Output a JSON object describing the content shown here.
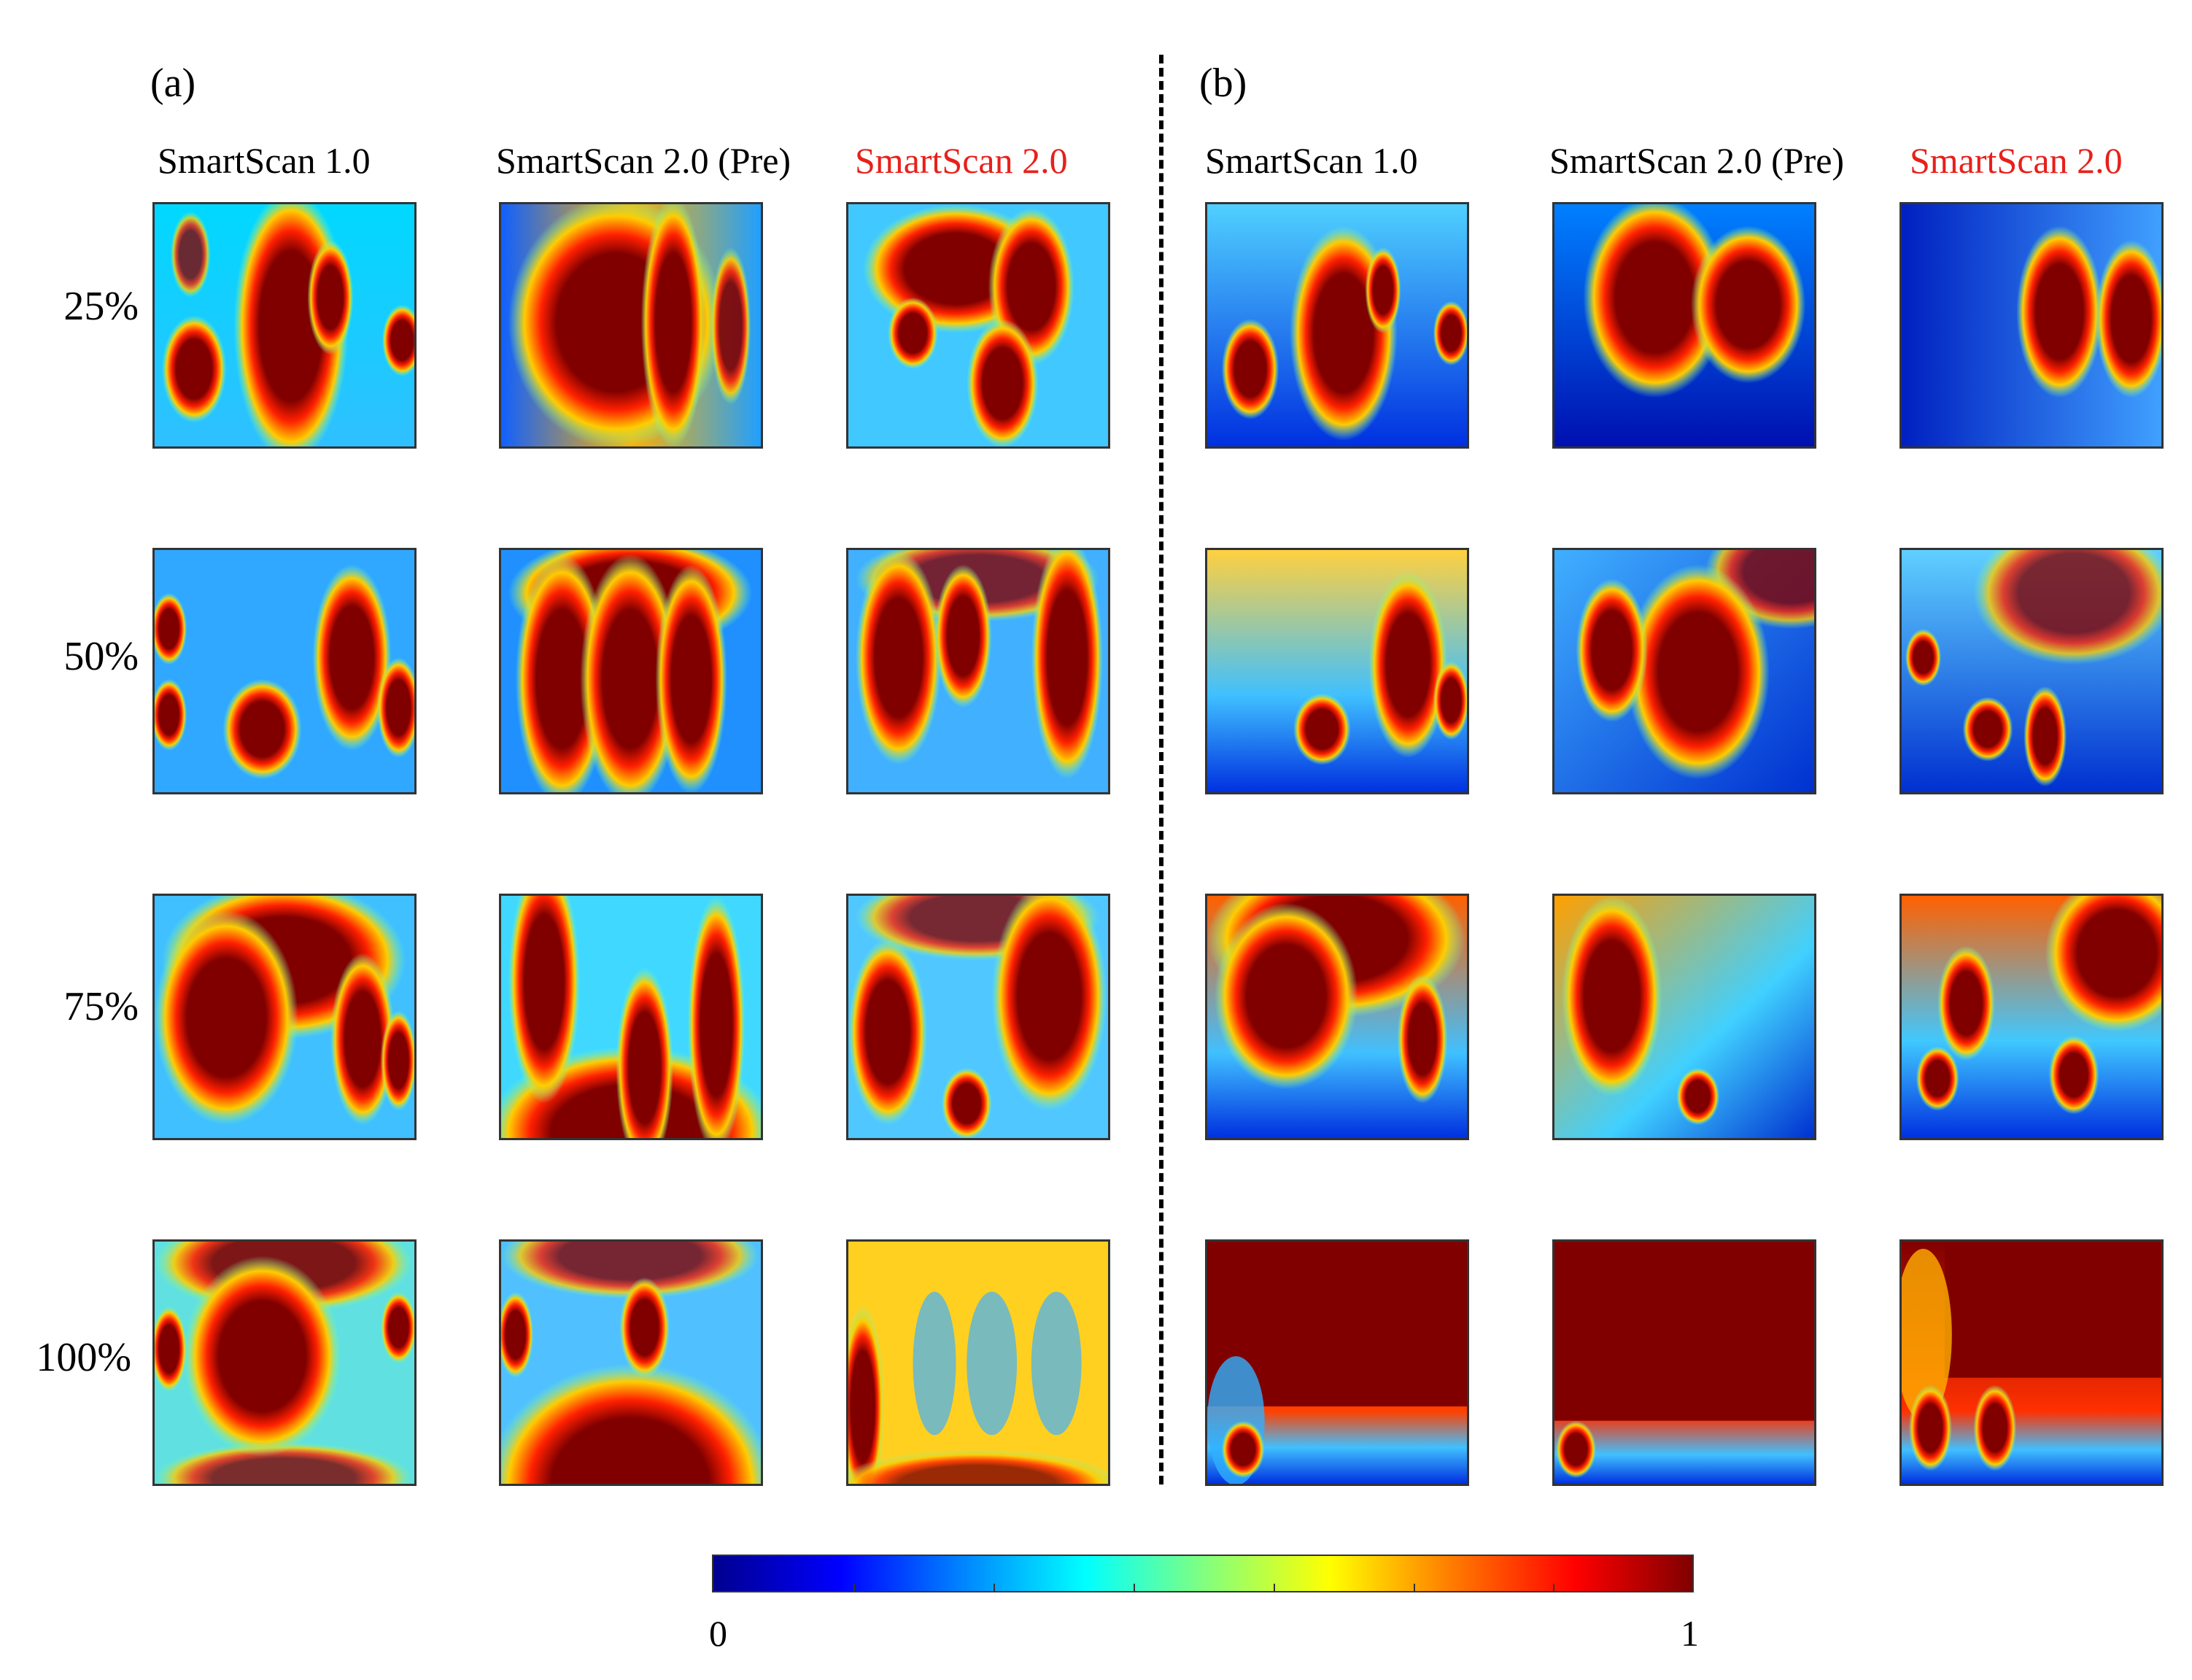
{
  "panels": [
    {
      "label": "(a)",
      "columns": [
        {
          "title": "SmartScan 1.0",
          "highlight": false
        },
        {
          "title": "SmartScan 2.0 (Pre)",
          "highlight": false
        },
        {
          "title": "SmartScan 2.0",
          "highlight": true
        }
      ]
    },
    {
      "label": "(b)",
      "columns": [
        {
          "title": "SmartScan 1.0",
          "highlight": false
        },
        {
          "title": "SmartScan 2.0 (Pre)",
          "highlight": false
        },
        {
          "title": "SmartScan 2.0",
          "highlight": true
        }
      ]
    }
  ],
  "rows": [
    "25%",
    "50%",
    "75%",
    "100%"
  ],
  "colorbar": {
    "min_label": "0",
    "max_label": "1",
    "colormap": "jet",
    "colors": [
      "#00008f",
      "#0000ff",
      "#0080ff",
      "#00ffff",
      "#80ff80",
      "#ffff00",
      "#ff8000",
      "#ff0000",
      "#800000"
    ]
  },
  "colors": {
    "highlight": "#e8201a",
    "background_low": "#0000c8",
    "saturated": "#800000"
  }
}
